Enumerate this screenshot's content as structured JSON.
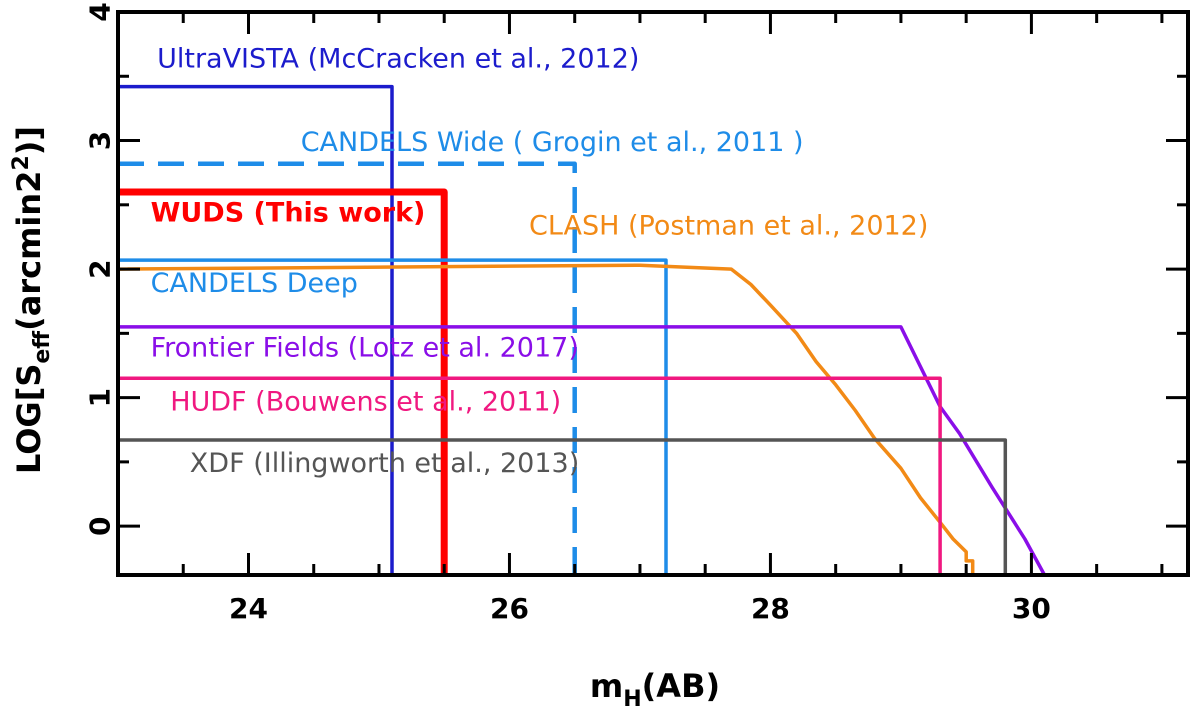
{
  "chart_data": {
    "type": "line",
    "xlabel": {
      "main": "m",
      "sub": "H",
      "rest": "(AB)"
    },
    "ylabel": {
      "pre": "LOG[S",
      "sub": "eff",
      "post": "(arcmin2",
      "sup": "2",
      "end": ")]"
    },
    "xlim": [
      23.0,
      31.2
    ],
    "ylim": [
      -0.38,
      4.0
    ],
    "xticks": [
      24,
      26,
      28,
      30
    ],
    "yticks": [
      0,
      1,
      2,
      3,
      4
    ],
    "grid": false,
    "series": [
      {
        "name": "UltraVISTA (McCracken et al., 2012)",
        "color": "#1c1ccc",
        "width": 3.5,
        "dash": "solid",
        "x": [
          23.0,
          25.1,
          25.1
        ],
        "y": [
          3.42,
          3.42,
          -0.38
        ]
      },
      {
        "name": "CANDELS Wide ( Grogin et al., 2011 )",
        "color": "#1e8ce8",
        "width": 4.5,
        "dash": "dashed",
        "x": [
          23.0,
          26.5,
          26.5
        ],
        "y": [
          2.82,
          2.82,
          -0.38
        ]
      },
      {
        "name": "WUDS (This work)",
        "color": "#ff0000",
        "width": 7,
        "dash": "solid",
        "x": [
          23.0,
          25.5,
          25.5
        ],
        "y": [
          2.6,
          2.6,
          -0.38
        ]
      },
      {
        "name": "CANDELS Deep",
        "color": "#1e8ce8",
        "width": 3.5,
        "dash": "solid",
        "x": [
          23.0,
          27.2,
          27.2
        ],
        "y": [
          2.07,
          2.07,
          -0.38
        ]
      },
      {
        "name": "CLASH (Postman et al., 2012)",
        "color": "#f28a16",
        "width": 3.5,
        "dash": "solid",
        "x": [
          23.0,
          27.0,
          27.7,
          27.85,
          28.0,
          28.2,
          28.35,
          28.5,
          28.65,
          28.8,
          29.0,
          29.15,
          29.3,
          29.4,
          29.5,
          29.5,
          29.55,
          29.55
        ],
        "y": [
          2.0,
          2.03,
          2.0,
          1.88,
          1.72,
          1.5,
          1.28,
          1.1,
          0.9,
          0.68,
          0.45,
          0.22,
          0.03,
          -0.1,
          -0.2,
          -0.27,
          -0.27,
          -0.38
        ]
      },
      {
        "name": "Frontier Fields (Lotz et al. 2017)",
        "color": "#8a0ee8",
        "width": 3.5,
        "dash": "solid",
        "x": [
          23.0,
          29.0,
          29.3,
          29.45,
          29.7,
          29.95,
          30.1
        ],
        "y": [
          1.55,
          1.55,
          0.93,
          0.72,
          0.3,
          -0.1,
          -0.38
        ]
      },
      {
        "name": "HUDF (Bouwens et al., 2011)",
        "color": "#f01880",
        "width": 3.5,
        "dash": "solid",
        "x": [
          23.0,
          29.3,
          29.3
        ],
        "y": [
          1.15,
          1.15,
          -0.38
        ]
      },
      {
        "name": "XDF (Illingworth et al., 2013)",
        "color": "#555555",
        "width": 3.5,
        "dash": "solid",
        "x": [
          23.0,
          29.8,
          29.8
        ],
        "y": [
          0.67,
          0.67,
          -0.38
        ]
      }
    ],
    "annotations": [
      {
        "text": "UltraVISTA (McCracken et al., 2012)",
        "x": 23.3,
        "y": 3.57,
        "color": "#1c1ccc",
        "bold": false
      },
      {
        "text": "CANDELS Wide ( Grogin et al., 2011 )",
        "x": 24.4,
        "y": 2.92,
        "color": "#1e8ce8",
        "bold": false
      },
      {
        "text": "WUDS (This work)",
        "x": 23.25,
        "y": 2.37,
        "color": "#ff0000",
        "bold": true
      },
      {
        "text": "CLASH (Postman et al., 2012)",
        "x": 26.15,
        "y": 2.27,
        "color": "#f28a16",
        "bold": false
      },
      {
        "text": "CANDELS Deep",
        "x": 23.25,
        "y": 1.82,
        "color": "#1e8ce8",
        "bold": false
      },
      {
        "text": "Frontier Fields (Lotz et al. 2017)",
        "x": 23.25,
        "y": 1.32,
        "color": "#8a0ee8",
        "bold": false
      },
      {
        "text": "HUDF (Bouwens et al., 2011)",
        "x": 23.4,
        "y": 0.9,
        "color": "#f01880",
        "bold": false
      },
      {
        "text": "XDF (Illingworth et al., 2013)",
        "x": 23.55,
        "y": 0.42,
        "color": "#555555",
        "bold": false
      }
    ]
  }
}
